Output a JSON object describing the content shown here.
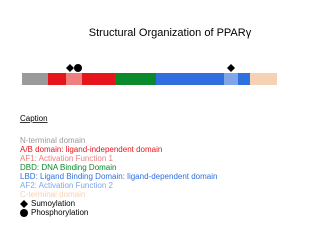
{
  "header": {
    "title": "Structural Organization of PPARγ"
  },
  "caption": {
    "heading": "Caption",
    "items": [
      {
        "text": "N-terminal domain",
        "color": "#9a9a9a"
      },
      {
        "text": "A/B domain: ligand-independent domain",
        "color": "#e8141c"
      },
      {
        "text": "AF1: Activation Function 1",
        "color": "#ef8080"
      },
      {
        "text": "DBD: DNA Binding Domain",
        "color": "#0a8a2a"
      },
      {
        "text": "LBD: Ligand Binding Domain: ligand-dependent domain",
        "color": "#2f6fe0"
      },
      {
        "text": "AF2: Activation Function 2",
        "color": "#7fa6e8"
      },
      {
        "text": "C-terminal domain",
        "color": "#f5d2b4"
      }
    ],
    "symbols": [
      {
        "shape": "diamond",
        "text": "Sumoylation"
      },
      {
        "shape": "circle",
        "text": "Phosphorylation"
      }
    ]
  }
}
